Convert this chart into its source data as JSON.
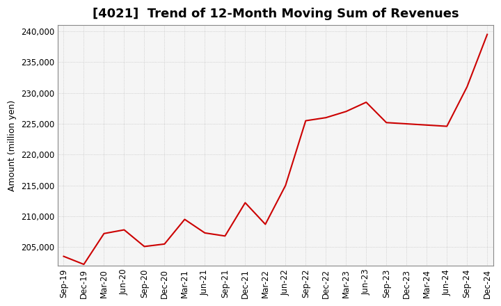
{
  "title": "[4021]  Trend of 12-Month Moving Sum of Revenues",
  "ylabel": "Amount (million yen)",
  "background_color": "#ffffff",
  "plot_bg_color": "#f5f5f5",
  "grid_color": "#aaaaaa",
  "line_color": "#cc0000",
  "x_labels": [
    "Sep-19",
    "Dec-19",
    "Mar-20",
    "Jun-20",
    "Sep-20",
    "Dec-20",
    "Mar-21",
    "Jun-21",
    "Sep-21",
    "Dec-21",
    "Mar-22",
    "Jun-22",
    "Sep-22",
    "Dec-22",
    "Mar-23",
    "Jun-23",
    "Sep-23",
    "Dec-23",
    "Mar-24",
    "Jun-24",
    "Sep-24",
    "Dec-24"
  ],
  "values": [
    203500,
    202200,
    207200,
    207800,
    205100,
    205500,
    209500,
    207300,
    206800,
    212200,
    208700,
    215000,
    225500,
    226000,
    227000,
    228500,
    225200,
    225000,
    224800,
    224600,
    231000,
    239500
  ],
  "ylim": [
    202000,
    241000
  ],
  "yticks": [
    205000,
    210000,
    215000,
    220000,
    225000,
    230000,
    235000,
    240000
  ],
  "title_fontsize": 13,
  "axis_fontsize": 8.5,
  "label_fontsize": 9
}
